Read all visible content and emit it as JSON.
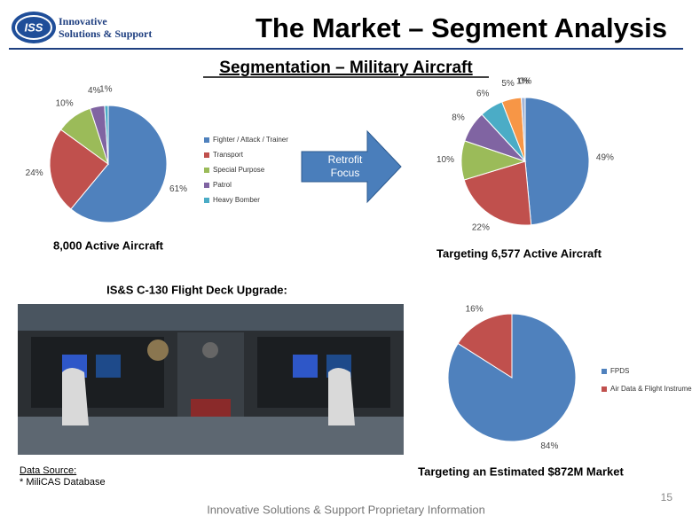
{
  "logo": {
    "mark": "ISS",
    "line1": "Innovative",
    "line2": "Solutions & Support"
  },
  "title": "The Market – Segment Analysis",
  "subtitle": "Segmentation – Military Aircraft",
  "arrow_label": [
    "Retrofit",
    "Focus"
  ],
  "photo_caption": "IS&S C-130 Flight Deck Upgrade:",
  "source": {
    "label": "Data Source:",
    "text": "* MiliCAS Database"
  },
  "page_number": "15",
  "footer": "Innovative Solutions & Support Proprietary Information",
  "chart_data": [
    {
      "type": "pie",
      "title": "8,000 Active Aircraft",
      "categories": [
        "Fighter / Attack / Trainer",
        "Transport",
        "Special Purpose",
        "Patrol",
        "Heavy Bomber"
      ],
      "values": [
        61,
        24,
        10,
        4,
        1
      ],
      "value_labels": [
        "61%",
        "24%",
        "10%",
        "4%",
        "1%"
      ],
      "colors": [
        "#4f81bd",
        "#c0504d",
        "#9bbb59",
        "#8064a2",
        "#4bacc6"
      ]
    },
    {
      "type": "pie",
      "title": "Targeting 6,577 Active Aircraft",
      "values": [
        49,
        22,
        10,
        8,
        6,
        5,
        1,
        0
      ],
      "value_labels": [
        "49%",
        "22%",
        "10%",
        "8%",
        "6%",
        "5%",
        "1%",
        "0%"
      ],
      "colors": [
        "#4f81bd",
        "#c0504d",
        "#9bbb59",
        "#8064a2",
        "#4bacc6",
        "#f79646",
        "#a5b6d6",
        "#d99694"
      ]
    },
    {
      "type": "pie",
      "title": "Targeting an Estimated $872M Market",
      "categories": [
        "FPDS",
        "Air Data & Flight Instruments"
      ],
      "values": [
        84,
        16
      ],
      "value_labels": [
        "84%",
        "16%"
      ],
      "colors": [
        "#4f81bd",
        "#c0504d"
      ]
    }
  ]
}
